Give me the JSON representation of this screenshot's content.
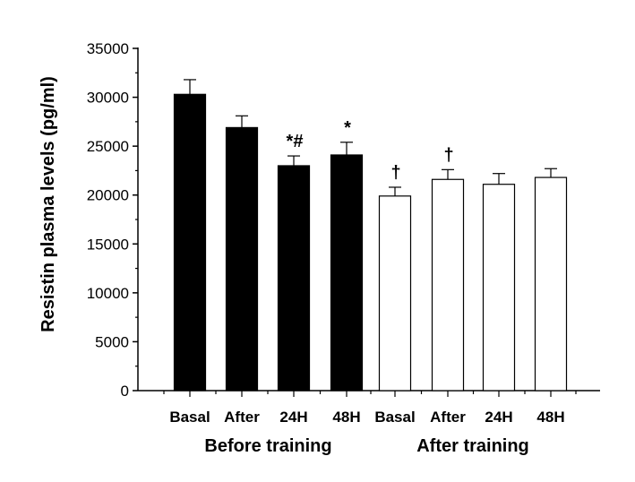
{
  "chart_data": {
    "type": "bar",
    "title": "",
    "xlabel": "",
    "ylabel": "Resistin plasma levels (pg/ml)",
    "ylim": [
      0,
      35000
    ],
    "yticks": [
      0,
      5000,
      10000,
      15000,
      20000,
      25000,
      30000,
      35000
    ],
    "grid": false,
    "categories": [
      "Basal",
      "After",
      "24H",
      "48H",
      "Basal",
      "After",
      "24H",
      "48H"
    ],
    "groups": [
      {
        "label": "Before training",
        "indices": [
          0,
          1,
          2,
          3
        ],
        "fill": "#000000"
      },
      {
        "label": "After training",
        "indices": [
          4,
          5,
          6,
          7
        ],
        "fill": "#ffffff"
      }
    ],
    "values": [
      30300,
      26900,
      23000,
      24100,
      19900,
      21600,
      21100,
      21800
    ],
    "errors": [
      1500,
      1200,
      1000,
      1300,
      900,
      1000,
      1100,
      900
    ],
    "annotations": [
      "",
      "",
      "*#",
      "*",
      "†",
      "†",
      "",
      ""
    ]
  }
}
